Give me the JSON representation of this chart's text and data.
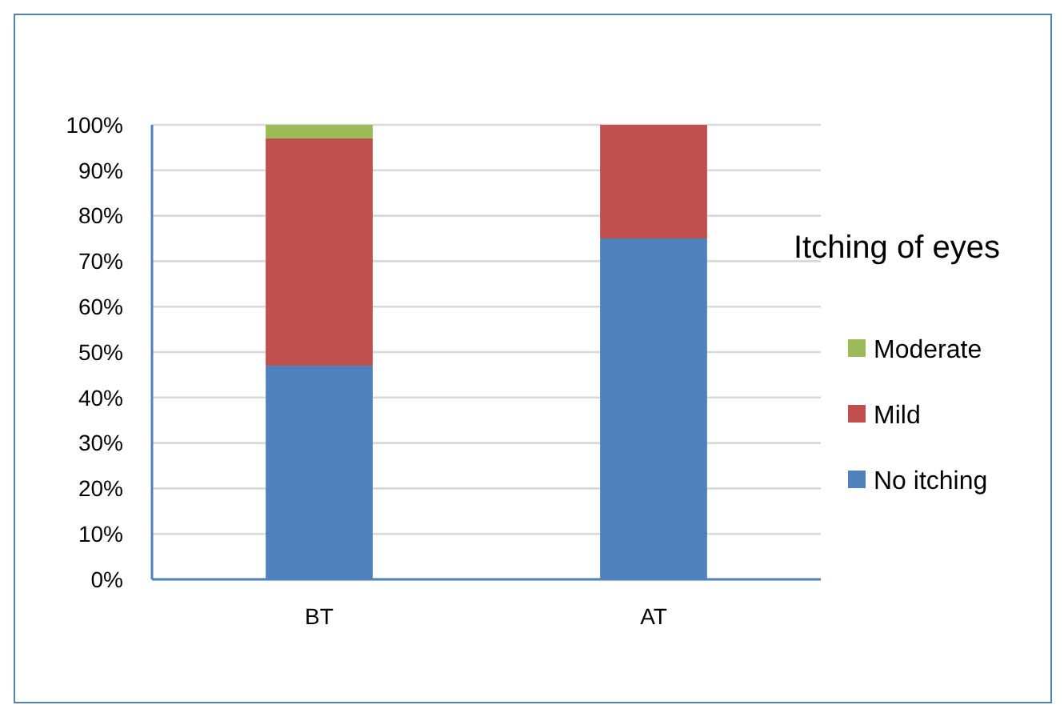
{
  "chart_data": {
    "type": "bar",
    "stacked": true,
    "legend_title": "Itching of eyes",
    "categories": [
      "BT",
      "AT"
    ],
    "series": [
      {
        "name": "No itching",
        "color": "#4f81bd",
        "values": [
          47,
          75
        ]
      },
      {
        "name": "Mild",
        "color": "#c0504d",
        "values": [
          50,
          25
        ]
      },
      {
        "name": "Moderate",
        "color": "#9bbb59",
        "values": [
          3,
          0
        ]
      }
    ],
    "ylim": [
      0,
      100
    ],
    "yticks": [
      {
        "value": 0,
        "label": "0%"
      },
      {
        "value": 10,
        "label": "10%"
      },
      {
        "value": 20,
        "label": "20%"
      },
      {
        "value": 30,
        "label": "30%"
      },
      {
        "value": 40,
        "label": "40%"
      },
      {
        "value": 50,
        "label": "50%"
      },
      {
        "value": 60,
        "label": "60%"
      },
      {
        "value": 70,
        "label": "70%"
      },
      {
        "value": 80,
        "label": "80%"
      },
      {
        "value": 90,
        "label": "90%"
      },
      {
        "value": 100,
        "label": "100%"
      }
    ],
    "grid": "y",
    "legend": "right"
  }
}
